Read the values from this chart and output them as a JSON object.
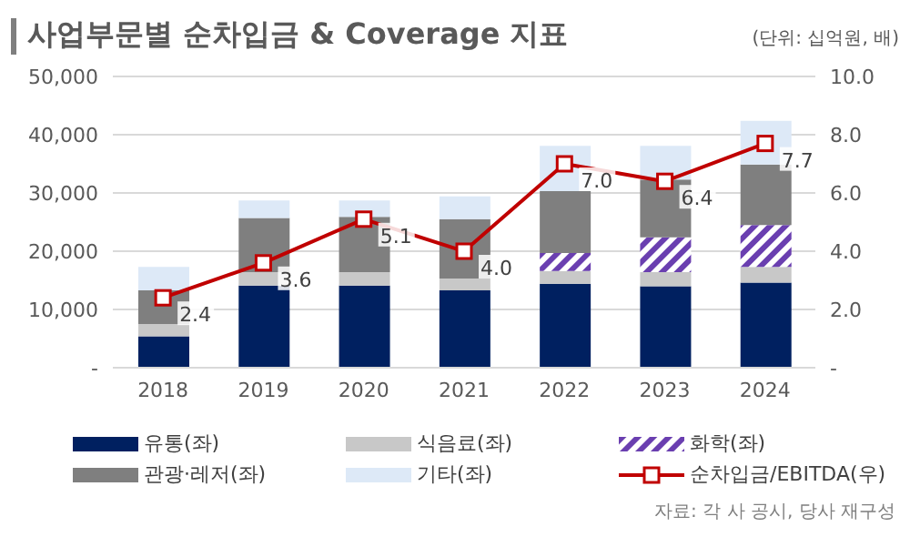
{
  "chart_data": {
    "type": "bar",
    "title": "사업부문별 순차입금 & Coverage 지표",
    "annotations": [
      "(단위: 십억원, 배)",
      "자료: 각 사 공시, 당사 재구성"
    ],
    "categories": [
      "2018",
      "2019",
      "2020",
      "2021",
      "2022",
      "2023",
      "2024"
    ],
    "stacked": true,
    "series": [
      {
        "name": "유통(좌)",
        "color": "#002060",
        "values": [
          5400,
          14100,
          14100,
          13300,
          14400,
          14000,
          14600
        ]
      },
      {
        "name": "식음료(좌)",
        "color": "#c8c8c8",
        "values": [
          2100,
          2300,
          2300,
          2000,
          2200,
          2400,
          2700
        ]
      },
      {
        "name": "화학(좌)",
        "color": "#6a3fb0",
        "values": [
          null,
          null,
          null,
          null,
          3100,
          6000,
          7200
        ]
      },
      {
        "name": "관광·레저(좌)",
        "color": "#7f7f7f",
        "values": [
          5800,
          9300,
          9500,
          10200,
          10600,
          9900,
          10400
        ]
      },
      {
        "name": "기타(좌)",
        "color": "#dde9f7",
        "values": [
          4000,
          3000,
          2800,
          3900,
          7800,
          5800,
          7500
        ]
      },
      {
        "name": "순차입금/EBITDA(우)",
        "type": "line",
        "axis": "y2",
        "color": "#c00000",
        "marker": "square",
        "values": [
          2.4,
          3.6,
          5.1,
          4.0,
          7.0,
          6.4,
          7.7
        ],
        "value_labels": [
          "2.4",
          "3.6",
          "5.1",
          "4.0",
          "7.0",
          "6.4",
          "7.7"
        ]
      }
    ],
    "ylim": [
      0,
      50000
    ],
    "yticks": [
      {
        "value": 0,
        "label": "-"
      },
      {
        "value": 10000,
        "label": "10,000"
      },
      {
        "value": 20000,
        "label": "20,000"
      },
      {
        "value": 30000,
        "label": "30,000"
      },
      {
        "value": 40000,
        "label": "40,000"
      },
      {
        "value": 50000,
        "label": "50,000"
      }
    ],
    "y2lim": [
      0,
      10
    ],
    "y2ticks": [
      {
        "value": 0,
        "label": "-"
      },
      {
        "value": 2,
        "label": "2.0"
      },
      {
        "value": 4,
        "label": "4.0"
      },
      {
        "value": 6,
        "label": "6.0"
      },
      {
        "value": 8,
        "label": "8.0"
      },
      {
        "value": 10,
        "label": "10.0"
      }
    ],
    "grid": "y",
    "legend": "bottom"
  }
}
